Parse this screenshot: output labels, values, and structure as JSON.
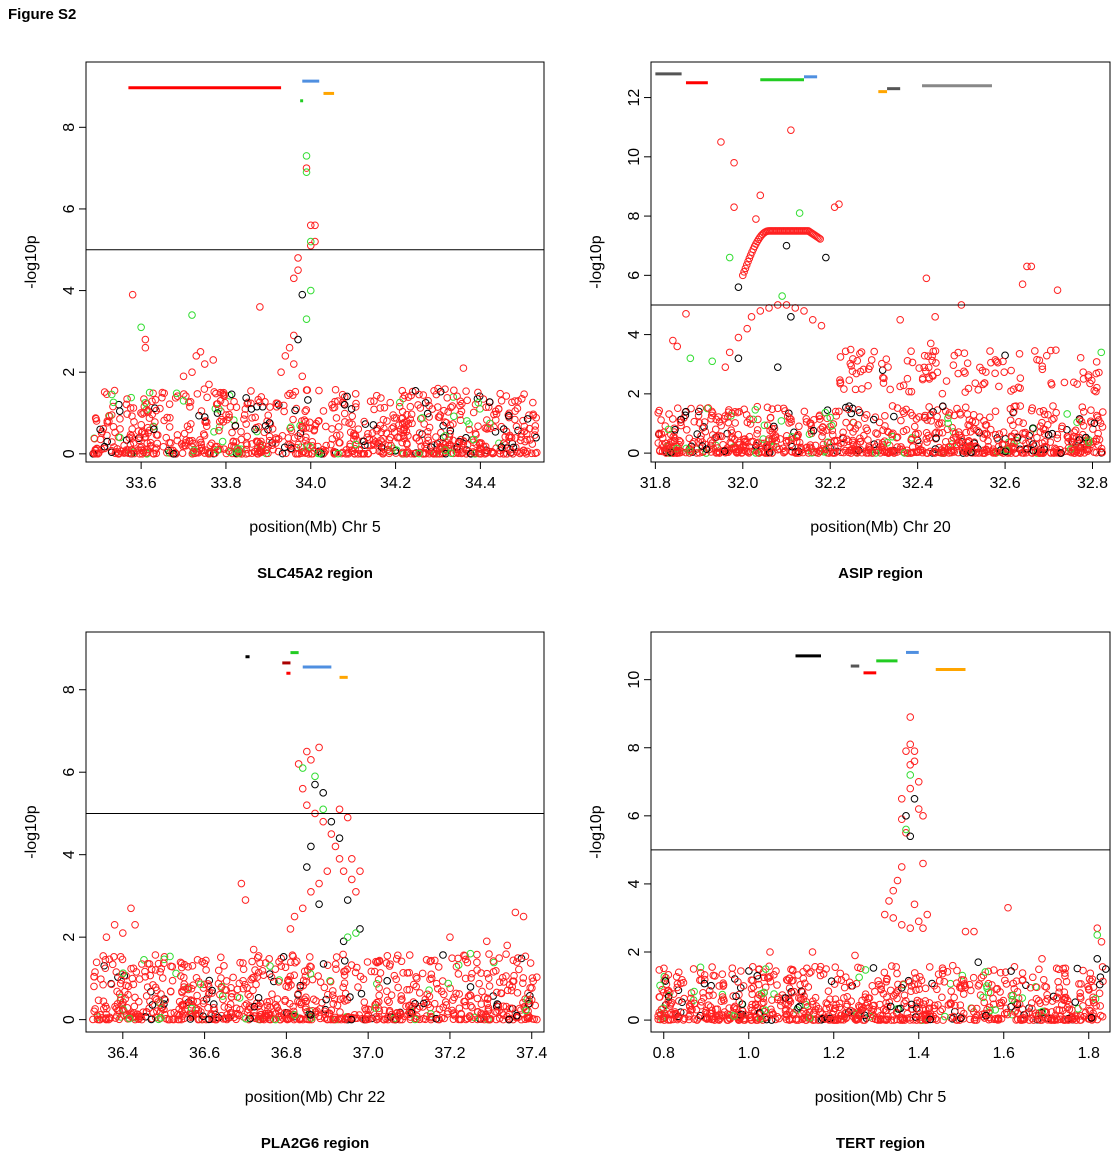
{
  "figure_label": "Figure S2",
  "chart_data": [
    {
      "type": "scatter",
      "title": "SLC45A2 region",
      "xlabel": "position(Mb) Chr 5",
      "ylabel": "-log10p",
      "xlim": [
        33.47,
        34.55
      ],
      "ylim": [
        -0.2,
        9.6
      ],
      "xticks": [
        "33.6",
        "33.8",
        "34.0",
        "34.2",
        "34.4"
      ],
      "yticks": [
        "0",
        "2",
        "4",
        "6",
        "8"
      ],
      "threshold": 5,
      "gene_bars": [
        {
          "x0": 33.57,
          "x1": 33.93,
          "y": 8.97,
          "color": "#ff0000"
        },
        {
          "x0": 33.98,
          "x1": 34.02,
          "y": 9.13,
          "color": "#4f8fe0"
        },
        {
          "x0": 34.03,
          "x1": 34.055,
          "y": 8.83,
          "color": "#ffa500"
        },
        {
          "x0": 33.975,
          "x1": 33.982,
          "y": 8.65,
          "color": "#22cc22"
        }
      ],
      "points": {
        "green": [
          [
            33.6,
            3.1
          ],
          [
            33.72,
            3.4
          ],
          [
            33.99,
            7.3
          ],
          [
            33.99,
            6.9
          ],
          [
            34.0,
            5.2
          ],
          [
            34.0,
            4.0
          ],
          [
            33.99,
            3.3
          ],
          [
            33.62,
            1.5
          ],
          [
            33.7,
            1.3
          ],
          [
            33.55,
            0.4
          ]
        ],
        "black": [
          [
            33.98,
            3.9
          ],
          [
            33.97,
            2.8
          ],
          [
            33.78,
            1.0
          ],
          [
            33.75,
            0.9
          ],
          [
            33.86,
            1.1
          ],
          [
            33.63,
            0.6
          ],
          [
            33.52,
            0.3
          ],
          [
            34.08,
            1.2
          ]
        ],
        "red": [
          [
            33.58,
            3.9
          ],
          [
            33.61,
            2.8
          ],
          [
            33.61,
            2.6
          ],
          [
            33.88,
            3.6
          ],
          [
            33.97,
            4.8
          ],
          [
            33.97,
            4.5
          ],
          [
            33.96,
            4.3
          ],
          [
            33.99,
            7.0
          ],
          [
            34.0,
            5.6
          ],
          [
            34.01,
            5.6
          ],
          [
            34.0,
            5.1
          ],
          [
            34.01,
            5.2
          ],
          [
            33.74,
            2.5
          ],
          [
            33.73,
            2.4
          ],
          [
            33.75,
            2.2
          ],
          [
            33.72,
            2.0
          ],
          [
            33.76,
            1.7
          ],
          [
            33.7,
            1.9
          ],
          [
            33.77,
            2.3
          ],
          [
            33.96,
            2.9
          ],
          [
            33.95,
            2.6
          ],
          [
            33.94,
            2.4
          ],
          [
            33.96,
            2.2
          ],
          [
            33.93,
            2.0
          ],
          [
            33.98,
            1.9
          ],
          [
            34.3,
            1.6
          ],
          [
            34.36,
            2.1
          ],
          [
            33.65,
            1.5
          ],
          [
            34.45,
            1.3
          ]
        ]
      }
    },
    {
      "type": "scatter",
      "title": "ASIP region",
      "xlabel": "position(Mb) Chr 20",
      "ylabel": "-log10p",
      "xlim": [
        31.79,
        32.84
      ],
      "ylim": [
        -0.3,
        13.2
      ],
      "xticks": [
        "31.8",
        "32.0",
        "32.2",
        "32.4",
        "32.6",
        "32.8"
      ],
      "yticks": [
        "0",
        "2",
        "4",
        "6",
        "8",
        "10",
        "12"
      ],
      "threshold": 5,
      "gene_bars": [
        {
          "x0": 31.8,
          "x1": 31.86,
          "y": 12.8,
          "color": "#555555"
        },
        {
          "x0": 31.87,
          "x1": 31.92,
          "y": 12.5,
          "color": "#ff0000"
        },
        {
          "x0": 32.04,
          "x1": 32.14,
          "y": 12.6,
          "color": "#22cc22"
        },
        {
          "x0": 32.14,
          "x1": 32.17,
          "y": 12.7,
          "color": "#4f8fe0"
        },
        {
          "x0": 32.31,
          "x1": 32.33,
          "y": 12.2,
          "color": "#ffa500"
        },
        {
          "x0": 32.33,
          "x1": 32.36,
          "y": 12.3,
          "color": "#555555"
        },
        {
          "x0": 32.41,
          "x1": 32.57,
          "y": 12.4,
          "color": "#888888"
        }
      ],
      "points": {
        "green": [
          [
            32.13,
            8.1
          ],
          [
            31.97,
            6.6
          ],
          [
            32.09,
            5.3
          ],
          [
            31.88,
            3.2
          ],
          [
            31.93,
            3.1
          ],
          [
            32.82,
            3.4
          ],
          [
            32.2,
            1.2
          ],
          [
            31.83,
            0.8
          ],
          [
            32.47,
            1.0
          ]
        ],
        "black": [
          [
            32.1,
            7.0
          ],
          [
            32.19,
            6.6
          ],
          [
            31.99,
            5.6
          ],
          [
            32.11,
            4.6
          ],
          [
            32.08,
            2.9
          ],
          [
            31.99,
            3.2
          ],
          [
            32.6,
            3.3
          ],
          [
            32.32,
            2.8
          ],
          [
            31.87,
            1.4
          ]
        ],
        "red": [
          [
            31.95,
            10.5
          ],
          [
            31.98,
            9.8
          ],
          [
            32.11,
            10.9
          ],
          [
            32.04,
            8.7
          ],
          [
            32.03,
            7.9
          ],
          [
            32.21,
            8.3
          ],
          [
            32.22,
            8.4
          ],
          [
            31.98,
            8.3
          ],
          [
            32.42,
            5.9
          ],
          [
            32.65,
            6.3
          ],
          [
            32.66,
            6.3
          ],
          [
            32.64,
            5.7
          ],
          [
            32.72,
            5.5
          ],
          [
            32.5,
            5.0
          ],
          [
            32.36,
            4.5
          ],
          [
            32.44,
            4.6
          ],
          [
            32.43,
            3.7
          ],
          [
            31.87,
            4.7
          ],
          [
            31.84,
            3.8
          ],
          [
            31.85,
            3.6
          ],
          [
            32.02,
            4.6
          ],
          [
            32.04,
            4.8
          ],
          [
            32.06,
            4.9
          ],
          [
            32.08,
            5.0
          ],
          [
            32.1,
            5.0
          ],
          [
            32.12,
            4.9
          ],
          [
            32.14,
            4.8
          ],
          [
            32.16,
            4.5
          ],
          [
            32.18,
            4.3
          ],
          [
            32.01,
            4.2
          ],
          [
            31.99,
            3.9
          ],
          [
            31.97,
            3.4
          ],
          [
            31.96,
            2.9
          ]
        ]
      }
    },
    {
      "type": "scatter",
      "title": "PLA2G6 region",
      "xlabel": "position(Mb) Chr 22",
      "ylabel": "-log10p",
      "xlim": [
        36.31,
        37.43
      ],
      "ylim": [
        -0.3,
        9.4
      ],
      "xticks": [
        "36.4",
        "36.6",
        "36.8",
        "37.0",
        "37.2",
        "37.4"
      ],
      "yticks": [
        "0",
        "2",
        "4",
        "6",
        "8"
      ],
      "threshold": 5,
      "gene_bars": [
        {
          "x0": 36.7,
          "x1": 36.71,
          "y": 8.8,
          "color": "#000000"
        },
        {
          "x0": 36.79,
          "x1": 36.81,
          "y": 8.65,
          "color": "#aa0000"
        },
        {
          "x0": 36.81,
          "x1": 36.83,
          "y": 8.9,
          "color": "#22cc22"
        },
        {
          "x0": 36.8,
          "x1": 36.81,
          "y": 8.4,
          "color": "#ff0000"
        },
        {
          "x0": 36.84,
          "x1": 36.91,
          "y": 8.55,
          "color": "#4f8fe0"
        },
        {
          "x0": 36.93,
          "x1": 36.95,
          "y": 8.3,
          "color": "#ffa500"
        }
      ],
      "points": {
        "green": [
          [
            36.84,
            6.1
          ],
          [
            36.87,
            5.9
          ],
          [
            36.89,
            5.1
          ],
          [
            36.97,
            2.1
          ],
          [
            36.95,
            2.0
          ],
          [
            36.76,
            1.3
          ],
          [
            37.25,
            1.6
          ]
        ],
        "black": [
          [
            36.87,
            5.7
          ],
          [
            36.89,
            5.5
          ],
          [
            36.91,
            4.8
          ],
          [
            36.93,
            4.4
          ],
          [
            36.86,
            4.2
          ],
          [
            36.85,
            3.7
          ],
          [
            36.88,
            2.8
          ],
          [
            36.95,
            2.9
          ],
          [
            36.98,
            2.2
          ],
          [
            36.94,
            1.9
          ]
        ],
        "red": [
          [
            36.88,
            6.6
          ],
          [
            36.86,
            6.3
          ],
          [
            36.85,
            6.5
          ],
          [
            36.83,
            6.2
          ],
          [
            36.84,
            5.6
          ],
          [
            36.85,
            5.2
          ],
          [
            36.87,
            5.0
          ],
          [
            36.89,
            4.8
          ],
          [
            36.91,
            4.5
          ],
          [
            36.92,
            4.2
          ],
          [
            36.93,
            3.9
          ],
          [
            36.94,
            3.6
          ],
          [
            36.96,
            3.4
          ],
          [
            36.97,
            3.1
          ],
          [
            36.98,
            3.6
          ],
          [
            36.96,
            3.9
          ],
          [
            36.93,
            5.1
          ],
          [
            36.95,
            4.9
          ],
          [
            36.9,
            3.6
          ],
          [
            36.88,
            3.3
          ],
          [
            36.86,
            3.1
          ],
          [
            36.84,
            2.7
          ],
          [
            36.82,
            2.5
          ],
          [
            36.81,
            2.2
          ],
          [
            36.69,
            3.3
          ],
          [
            36.7,
            2.9
          ],
          [
            36.72,
            1.7
          ],
          [
            36.73,
            1.5
          ],
          [
            36.42,
            2.7
          ],
          [
            36.43,
            2.3
          ],
          [
            36.38,
            2.3
          ],
          [
            36.36,
            2.0
          ],
          [
            36.4,
            2.1
          ],
          [
            37.36,
            2.6
          ],
          [
            37.38,
            2.5
          ],
          [
            37.2,
            2.0
          ],
          [
            37.29,
            1.9
          ],
          [
            37.34,
            1.8
          ]
        ]
      }
    },
    {
      "type": "scatter",
      "title": "TERT region",
      "xlabel": "position(Mb) Chr 5",
      "ylabel": "-log10p",
      "xlim": [
        0.77,
        1.85
      ],
      "ylim": [
        -0.35,
        11.4
      ],
      "xticks": [
        "0.8",
        "1.0",
        "1.2",
        "1.4",
        "1.6",
        "1.8"
      ],
      "yticks": [
        "0",
        "2",
        "4",
        "6",
        "8",
        "10"
      ],
      "threshold": 5,
      "gene_bars": [
        {
          "x0": 1.11,
          "x1": 1.17,
          "y": 10.7,
          "color": "#000000"
        },
        {
          "x0": 1.24,
          "x1": 1.26,
          "y": 10.4,
          "color": "#555555"
        },
        {
          "x0": 1.27,
          "x1": 1.3,
          "y": 10.2,
          "color": "#ff0000"
        },
        {
          "x0": 1.3,
          "x1": 1.35,
          "y": 10.55,
          "color": "#22cc22"
        },
        {
          "x0": 1.37,
          "x1": 1.4,
          "y": 10.8,
          "color": "#4f8fe0"
        },
        {
          "x0": 1.44,
          "x1": 1.51,
          "y": 10.3,
          "color": "#ffa500"
        }
      ],
      "points": {
        "green": [
          [
            1.38,
            7.2
          ],
          [
            1.37,
            5.6
          ],
          [
            1.82,
            2.5
          ],
          [
            1.04,
            1.5
          ],
          [
            1.56,
            1.0
          ],
          [
            1.58,
            0.3
          ],
          [
            1.62,
            0.6
          ]
        ],
        "black": [
          [
            1.39,
            6.5
          ],
          [
            1.37,
            6.0
          ],
          [
            1.38,
            5.4
          ],
          [
            1.84,
            1.5
          ],
          [
            1.82,
            1.8
          ],
          [
            1.54,
            1.7
          ],
          [
            0.97,
            0.7
          ],
          [
            1.02,
            1.3
          ]
        ],
        "red": [
          [
            1.38,
            8.9
          ],
          [
            1.38,
            8.1
          ],
          [
            1.39,
            7.9
          ],
          [
            1.39,
            7.6
          ],
          [
            1.38,
            7.5
          ],
          [
            1.37,
            7.9
          ],
          [
            1.4,
            7.0
          ],
          [
            1.4,
            6.2
          ],
          [
            1.41,
            6.0
          ],
          [
            1.38,
            6.8
          ],
          [
            1.36,
            6.5
          ],
          [
            1.36,
            5.9
          ],
          [
            1.37,
            5.5
          ],
          [
            1.36,
            4.5
          ],
          [
            1.35,
            4.1
          ],
          [
            1.34,
            3.8
          ],
          [
            1.33,
            3.5
          ],
          [
            1.32,
            3.1
          ],
          [
            1.34,
            3.0
          ],
          [
            1.36,
            2.8
          ],
          [
            1.38,
            2.7
          ],
          [
            1.4,
            2.9
          ],
          [
            1.41,
            4.6
          ],
          [
            1.42,
            3.1
          ],
          [
            1.41,
            2.7
          ],
          [
            1.39,
            3.4
          ],
          [
            1.61,
            3.3
          ],
          [
            1.51,
            2.6
          ],
          [
            1.53,
            2.6
          ],
          [
            1.82,
            2.7
          ],
          [
            1.83,
            2.3
          ],
          [
            1.05,
            2.0
          ],
          [
            1.15,
            2.0
          ],
          [
            1.25,
            1.9
          ],
          [
            1.48,
            1.6
          ],
          [
            1.69,
            1.8
          ]
        ]
      }
    }
  ]
}
